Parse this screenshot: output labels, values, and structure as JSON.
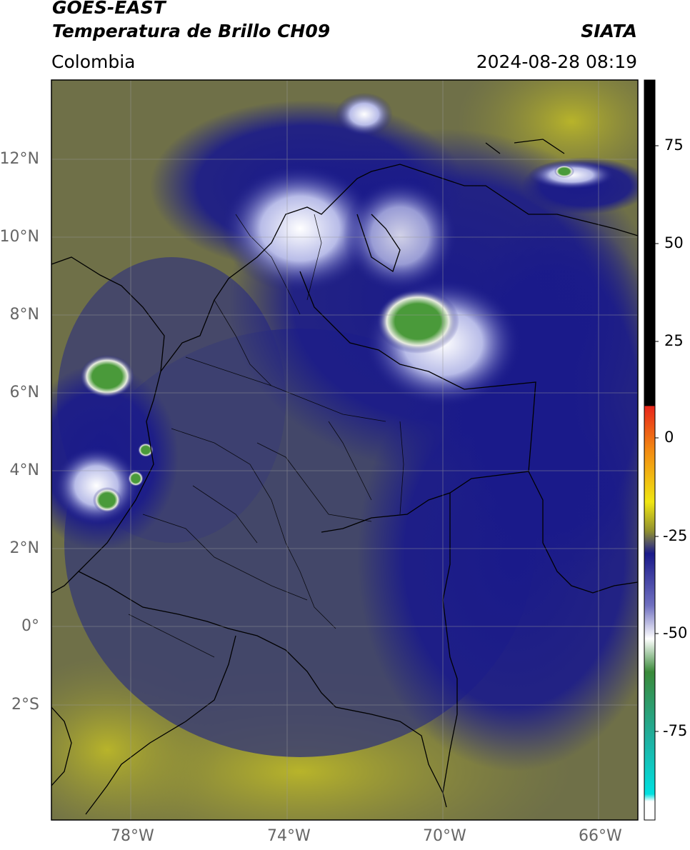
{
  "header": {
    "satellite": "GOES-EAST",
    "product": "Temperatura de Brillo CH09",
    "region": "Colombia",
    "source": "SIATA",
    "datetime": "2024-08-28 08:19"
  },
  "map": {
    "lat_ticks": [
      "12°N",
      "10°N",
      "8°N",
      "6°N",
      "4°N",
      "2°N",
      "0°",
      "2°S"
    ],
    "lon_ticks": [
      "78°W",
      "74°W",
      "70°W",
      "66°W"
    ],
    "gridlines": true
  },
  "colorbar": {
    "ticks": [
      "75",
      "50",
      "25",
      "0",
      "-25",
      "-50",
      "-75"
    ],
    "colors": {
      "warm_end": "#000000",
      "red": "#e8261b",
      "orange": "#f28a12",
      "yellow": "#f0e612",
      "olive": "#8f8f30",
      "gray": "#555565",
      "navy": "#1a1a8a",
      "white": "#ffffff",
      "green": "#3a8a3a",
      "teal": "#20b0a0",
      "cyan": "#00e0e0"
    }
  }
}
